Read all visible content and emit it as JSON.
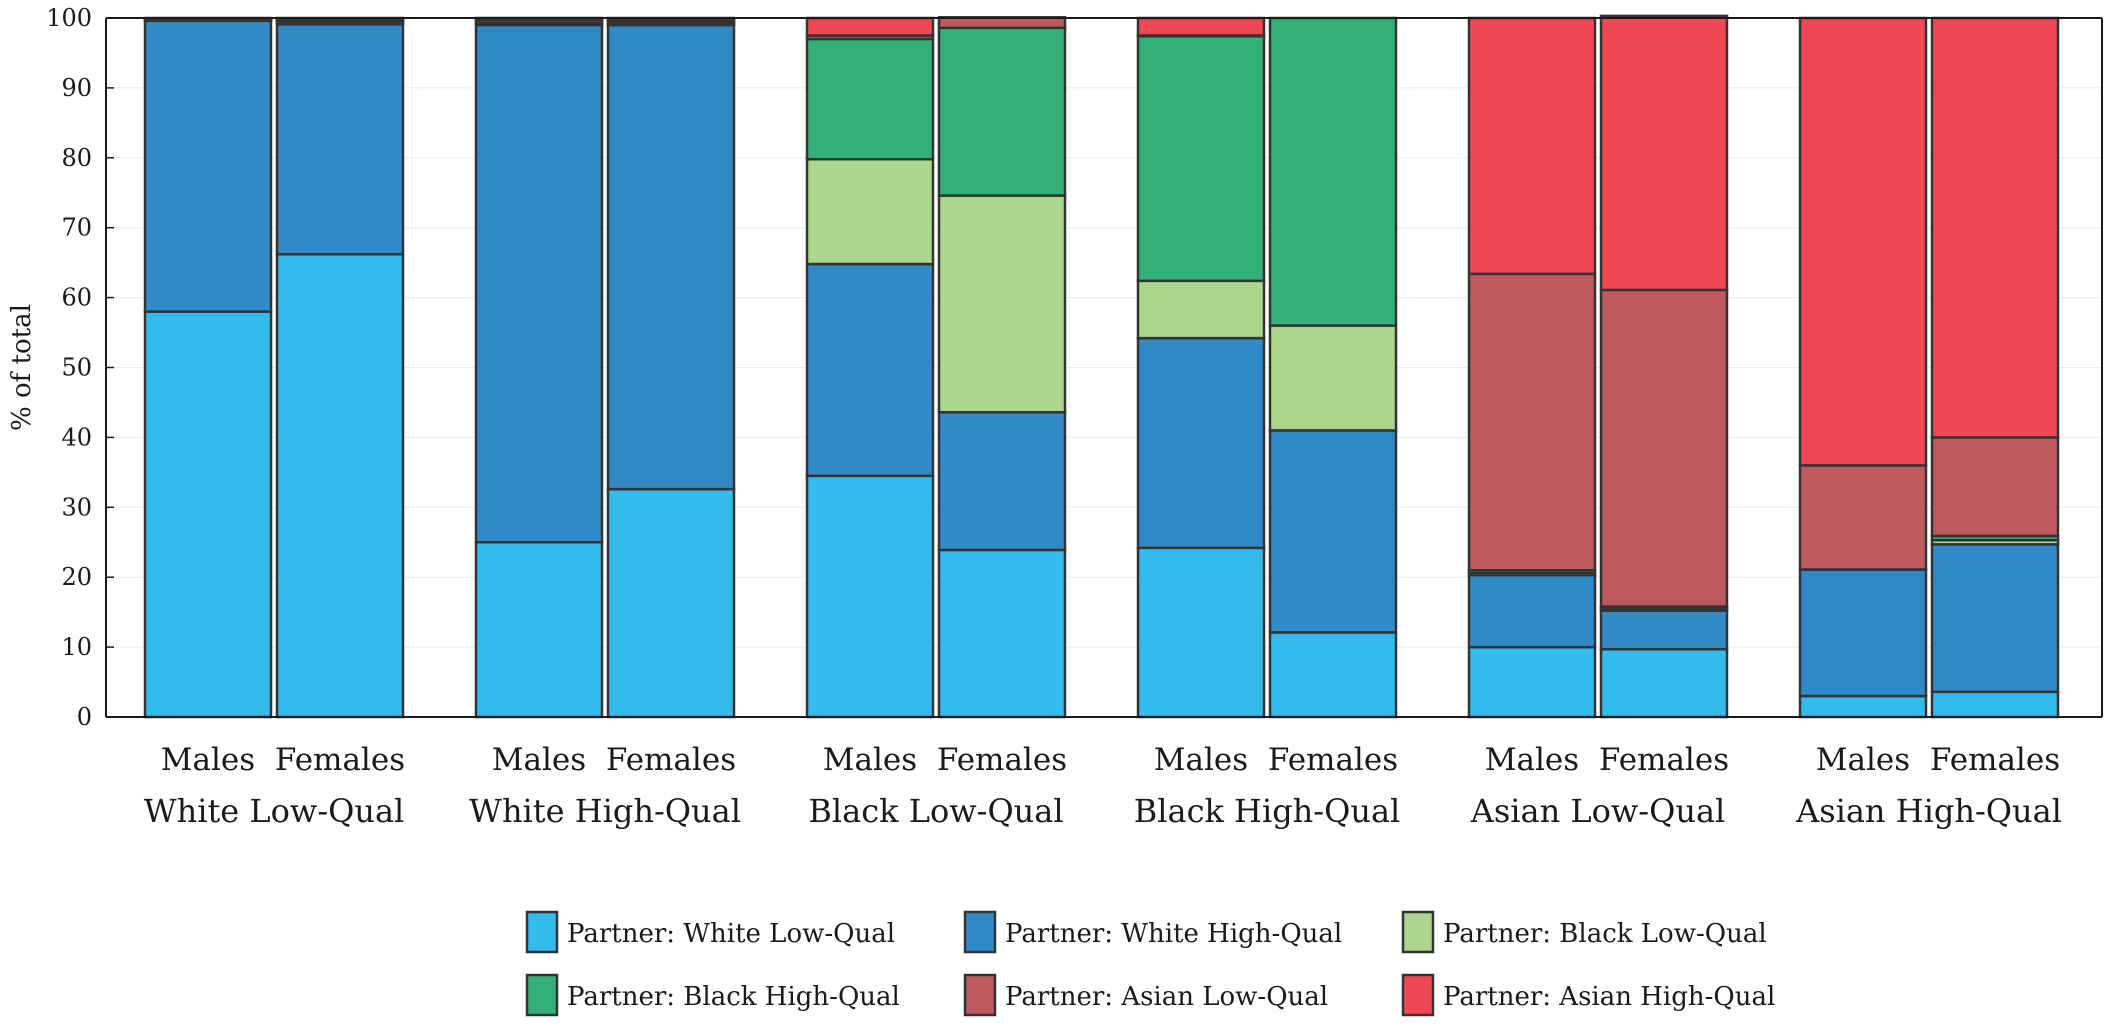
{
  "chart_data": {
    "type": "bar",
    "stacked": true,
    "ylabel": "% of total",
    "ylim": [
      0,
      100
    ],
    "yticks": [
      0,
      10,
      20,
      30,
      40,
      50,
      60,
      70,
      80,
      90,
      100
    ],
    "grid": true,
    "legend_position": "bottom-center",
    "categories": [
      {
        "label": "Males",
        "group": "White Low-Qual"
      },
      {
        "label": "Females",
        "group": "White Low-Qual"
      },
      {
        "label": "Males",
        "group": "White High-Qual"
      },
      {
        "label": "Females",
        "group": "White High-Qual"
      },
      {
        "label": "Males",
        "group": "Black Low-Qual"
      },
      {
        "label": "Females",
        "group": "Black Low-Qual"
      },
      {
        "label": "Males",
        "group": "Black High-Qual"
      },
      {
        "label": "Females",
        "group": "Black High-Qual"
      },
      {
        "label": "Males",
        "group": "Asian Low-Qual"
      },
      {
        "label": "Females",
        "group": "Asian Low-Qual"
      },
      {
        "label": "Males",
        "group": "Asian High-Qual"
      },
      {
        "label": "Females",
        "group": "Asian High-Qual"
      }
    ],
    "groups": [
      "White Low-Qual",
      "White High-Qual",
      "Black Low-Qual",
      "Black High-Qual",
      "Asian Low-Qual",
      "Asian High-Qual"
    ],
    "series": [
      {
        "name": "Partner:  White Low-Qual",
        "color": "#33bbee",
        "values": [
          58.0,
          66.2,
          25.0,
          32.6,
          34.5,
          23.9,
          24.2,
          12.1,
          10.0,
          9.7,
          3.0,
          3.6
        ]
      },
      {
        "name": "Partner:  White High-Qual",
        "color": "#3189c7",
        "values": [
          41.6,
          32.9,
          74.0,
          66.4,
          30.3,
          19.7,
          30.0,
          28.9,
          10.3,
          5.5,
          18.1,
          21.1
        ]
      },
      {
        "name": "Partner:  Black Low-Qual",
        "color": "#acd68b",
        "values": [
          0.1,
          0.2,
          0.3,
          0.2,
          15.0,
          31.0,
          8.2,
          15.0,
          0.3,
          0.3,
          0.0,
          0.6
        ]
      },
      {
        "name": "Partner:  Black High-Qual",
        "color": "#34b077",
        "values": [
          0.1,
          0.3,
          0.4,
          0.3,
          17.2,
          24.0,
          35.0,
          44.0,
          0.4,
          0.3,
          0.0,
          0.6
        ]
      },
      {
        "name": "Partner:  Asian Low-Qual",
        "color": "#be595e",
        "values": [
          0.1,
          0.2,
          0.2,
          0.2,
          0.5,
          1.5,
          0.1,
          0.0,
          42.4,
          45.3,
          14.9,
          14.1
        ]
      },
      {
        "name": "Partner:  Asian High-Qual",
        "color": "#ef4853",
        "values": [
          0.1,
          0.2,
          0.1,
          0.3,
          2.5,
          0.0,
          2.5,
          0.0,
          36.6,
          39.2,
          64.0,
          60.0
        ]
      }
    ]
  },
  "colors": {
    "axis": "#1a1a1a",
    "bar_edge": "#333333",
    "grid": "#ececec",
    "background": "#ffffff"
  }
}
